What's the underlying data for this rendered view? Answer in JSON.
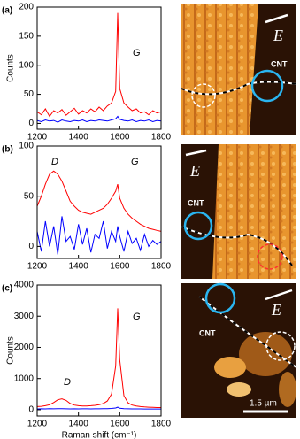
{
  "chart_data": [
    {
      "type": "line",
      "panel_label": "(a)",
      "y_label": "Counts",
      "annotations": [
        "G"
      ],
      "x": [
        1200,
        1220,
        1240,
        1260,
        1280,
        1300,
        1320,
        1340,
        1360,
        1380,
        1400,
        1420,
        1440,
        1460,
        1480,
        1500,
        1520,
        1540,
        1560,
        1580,
        1590,
        1600,
        1620,
        1640,
        1660,
        1680,
        1700,
        1720,
        1740,
        1760,
        1780,
        1800
      ],
      "xlim": [
        1200,
        1800
      ],
      "xticks": [
        1200,
        1400,
        1600,
        1800
      ],
      "ylim": [
        -10,
        200
      ],
      "yticks": [
        0,
        50,
        100,
        150,
        200
      ],
      "series": [
        {
          "color": "#ff0000",
          "values": [
            20,
            15,
            25,
            12,
            22,
            18,
            24,
            14,
            20,
            26,
            16,
            22,
            18,
            25,
            20,
            28,
            22,
            30,
            35,
            55,
            190,
            60,
            35,
            28,
            22,
            25,
            18,
            20,
            15,
            22,
            18,
            20
          ]
        },
        {
          "color": "#0000ff",
          "values": [
            5,
            3,
            6,
            4,
            5,
            2,
            6,
            4,
            3,
            5,
            4,
            6,
            3,
            5,
            4,
            6,
            5,
            4,
            6,
            8,
            12,
            7,
            5,
            4,
            6,
            3,
            5,
            4,
            6,
            3,
            5,
            4
          ]
        }
      ]
    },
    {
      "type": "line",
      "panel_label": "(b)",
      "annotations": [
        "D",
        "G"
      ],
      "x": [
        1200,
        1220,
        1240,
        1260,
        1280,
        1300,
        1320,
        1340,
        1360,
        1380,
        1400,
        1420,
        1440,
        1460,
        1480,
        1500,
        1520,
        1540,
        1560,
        1580,
        1590,
        1600,
        1620,
        1640,
        1660,
        1680,
        1700,
        1720,
        1740,
        1760,
        1780,
        1800
      ],
      "xlim": [
        1200,
        1800
      ],
      "xticks": [
        1200,
        1400,
        1600,
        1800
      ],
      "ylim": [
        -12,
        100
      ],
      "yticks": [
        0,
        50,
        100
      ],
      "series": [
        {
          "color": "#ff0000",
          "values": [
            40,
            50,
            62,
            72,
            75,
            72,
            65,
            55,
            45,
            40,
            36,
            34,
            33,
            32,
            34,
            36,
            38,
            42,
            48,
            55,
            62,
            48,
            38,
            32,
            28,
            25,
            22,
            20,
            18,
            17,
            16,
            15
          ]
        },
        {
          "color": "#0000ff",
          "values": [
            15,
            -5,
            25,
            0,
            20,
            -8,
            30,
            5,
            10,
            -3,
            22,
            2,
            18,
            -6,
            12,
            8,
            25,
            -2,
            15,
            5,
            20,
            10,
            -5,
            15,
            3,
            8,
            -4,
            12,
            0,
            6,
            2,
            5
          ]
        }
      ]
    },
    {
      "type": "line",
      "panel_label": "(c)",
      "y_label": "Counts",
      "x_label": "Raman shift (cm⁻¹)",
      "annotations": [
        "D",
        "G"
      ],
      "x": [
        1200,
        1220,
        1240,
        1260,
        1280,
        1300,
        1320,
        1340,
        1360,
        1380,
        1400,
        1420,
        1440,
        1460,
        1480,
        1500,
        1520,
        1540,
        1560,
        1580,
        1590,
        1600,
        1620,
        1640,
        1660,
        1680,
        1700,
        1720,
        1740,
        1760,
        1780,
        1800
      ],
      "xlim": [
        1200,
        1800
      ],
      "xticks": [
        1200,
        1400,
        1600,
        1800
      ],
      "ylim": [
        -200,
        4000
      ],
      "yticks": [
        0,
        1000,
        2000,
        3000,
        4000
      ],
      "series": [
        {
          "color": "#ff0000",
          "values": [
            100,
            110,
            130,
            160,
            230,
            320,
            350,
            300,
            200,
            150,
            130,
            120,
            120,
            130,
            140,
            160,
            200,
            280,
            500,
            1400,
            3250,
            1600,
            450,
            220,
            150,
            120,
            100,
            90,
            80,
            75,
            70,
            70
          ]
        },
        {
          "color": "#0000ff",
          "values": [
            25,
            30,
            28,
            32,
            30,
            35,
            33,
            30,
            28,
            30,
            27,
            29,
            30,
            28,
            31,
            30,
            32,
            35,
            40,
            55,
            80,
            50,
            35,
            30,
            28,
            27,
            26,
            25,
            25,
            24,
            25,
            24
          ]
        }
      ]
    }
  ],
  "images": [
    {
      "field": "E",
      "object": "CNT"
    },
    {
      "field": "E",
      "object": "CNT"
    },
    {
      "field": "E",
      "object": "CNT"
    }
  ],
  "scale_bar": "1.5 µm"
}
